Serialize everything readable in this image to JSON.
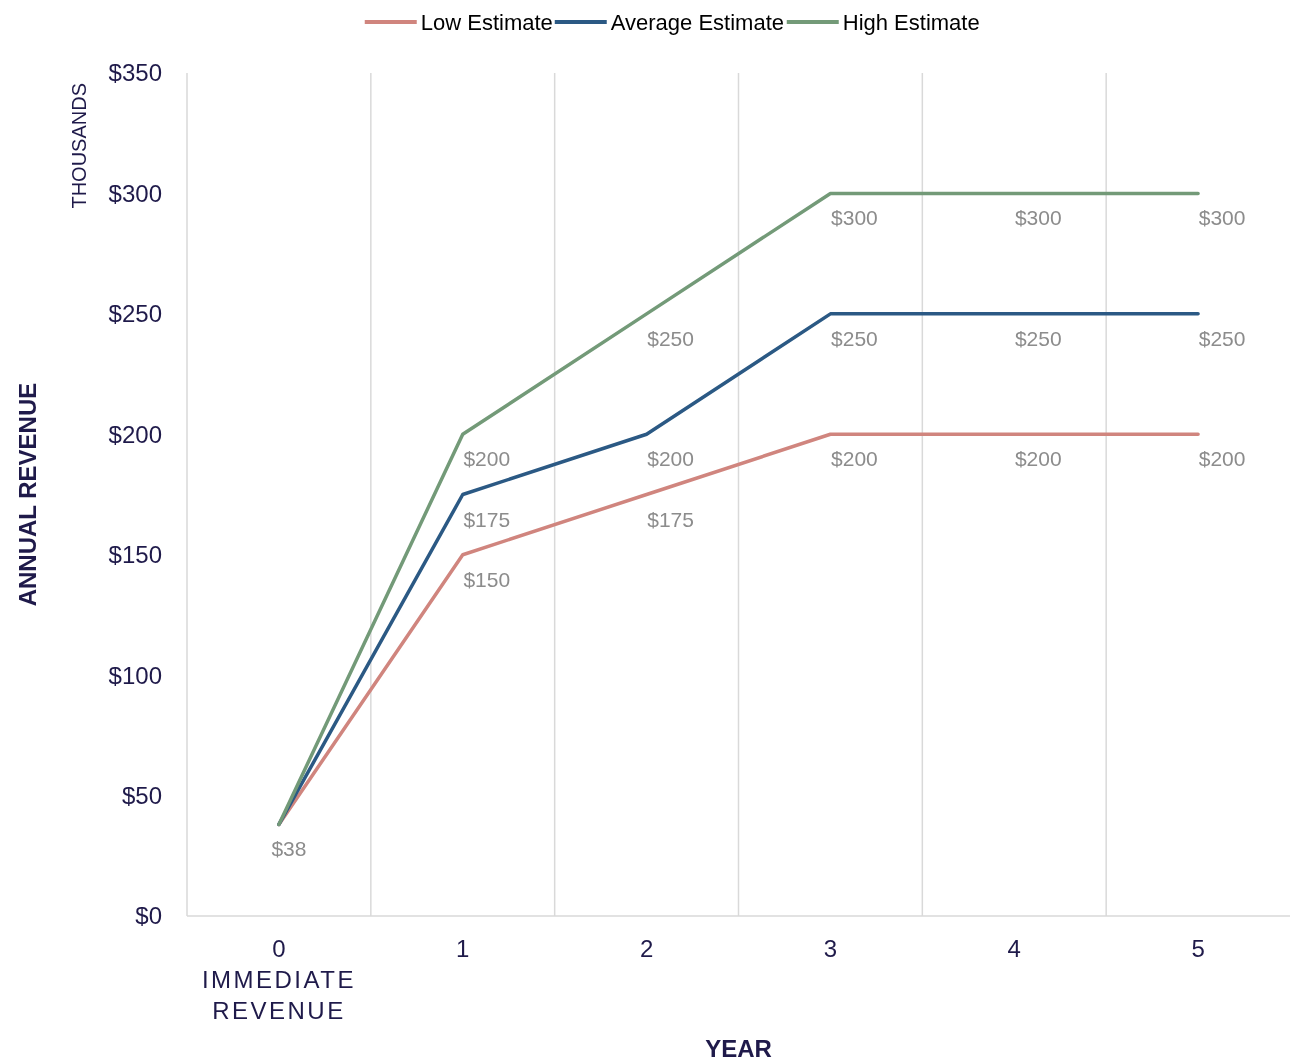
{
  "chart_data": {
    "type": "line",
    "xlabel": "YEAR",
    "ylabel": "ANNUAL REVENUE",
    "annotations": [
      "THOUSANDS"
    ],
    "categories": [
      "0\nIMMEDIATE\nREVENUE",
      "1",
      "2",
      "3",
      "4",
      "5"
    ],
    "series": [
      {
        "name": "Low Estimate",
        "color": "#d0857e",
        "values": [
          38,
          150,
          175,
          200,
          200,
          200
        ],
        "value_labels": [
          "$38",
          "$150",
          "$175",
          "$200",
          "$200",
          "$200"
        ]
      },
      {
        "name": "Average Estimate",
        "color": "#2b5984",
        "values": [
          38,
          175,
          200,
          250,
          250,
          250
        ],
        "value_labels": [
          null,
          "$175",
          "$200",
          "$250",
          "$250",
          "$250"
        ]
      },
      {
        "name": "High Estimate",
        "color": "#739a78",
        "values": [
          38,
          200,
          250,
          300,
          300,
          300
        ],
        "value_labels": [
          null,
          "$200",
          "$250",
          "$300",
          "$300",
          "$300"
        ]
      }
    ],
    "ylim": [
      0,
      350
    ],
    "yticks": [
      {
        "value": 0,
        "label": "$0"
      },
      {
        "value": 50,
        "label": "$50"
      },
      {
        "value": 100,
        "label": "$100"
      },
      {
        "value": 150,
        "label": "$150"
      },
      {
        "value": 200,
        "label": "$200"
      },
      {
        "value": 250,
        "label": "$250"
      },
      {
        "value": 300,
        "label": "$300"
      },
      {
        "value": 350,
        "label": "$350"
      }
    ],
    "grid": "x",
    "legend": "top",
    "marker": "none",
    "line_style": "solid"
  }
}
